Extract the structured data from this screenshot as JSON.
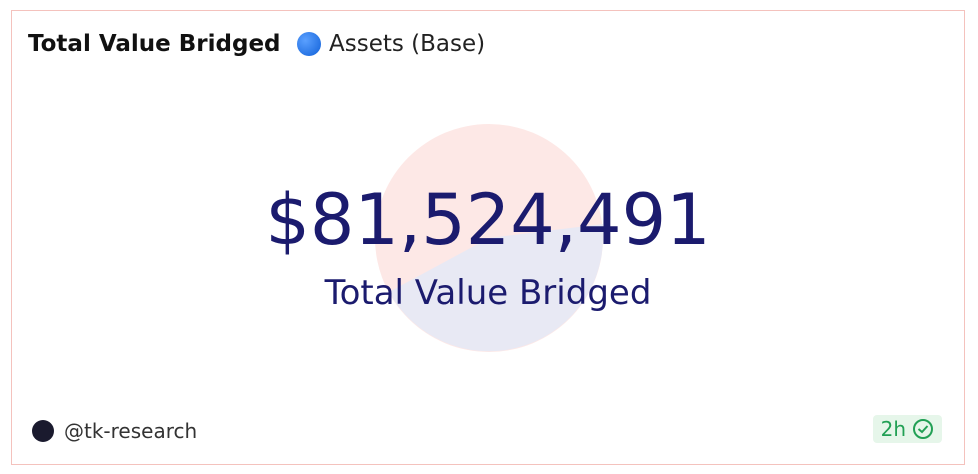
{
  "header": {
    "title": "Total Value Bridged",
    "subtitle": "Assets (Base)"
  },
  "counter": {
    "value": "$81,524,491",
    "label": "Total Value Bridged"
  },
  "footer": {
    "author": "@tk-research",
    "age": "2h"
  }
}
